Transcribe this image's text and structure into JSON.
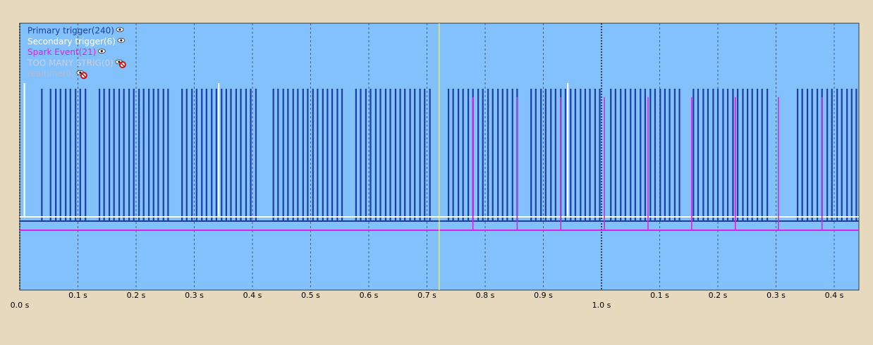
{
  "chart_data": {
    "type": "pulse",
    "xlim": [
      0,
      1.4424
    ],
    "xticks": [
      {
        "value": 0.1,
        "label": "0.1 s"
      },
      {
        "value": 0.2,
        "label": "0.2 s"
      },
      {
        "value": 0.3,
        "label": "0.3 s"
      },
      {
        "value": 0.4,
        "label": "0.4 s"
      },
      {
        "value": 0.5,
        "label": "0.5 s"
      },
      {
        "value": 0.6,
        "label": "0.6 s"
      },
      {
        "value": 0.7,
        "label": "0.7 s"
      },
      {
        "value": 0.8,
        "label": "0.8 s"
      },
      {
        "value": 0.9,
        "label": "0.9 s"
      },
      {
        "value": 1.1,
        "label": "0.1 s"
      },
      {
        "value": 1.2,
        "label": "0.2 s"
      },
      {
        "value": 1.3,
        "label": "0.3 s"
      },
      {
        "value": 1.4,
        "label": "0.4 s"
      }
    ],
    "major_xticks": [
      {
        "value": 0,
        "label": "0.0 s"
      },
      {
        "value": 1.0,
        "label": "1.0 s"
      }
    ],
    "cursor": 0.721,
    "cursor_color": "#f0f080",
    "grid": true,
    "series": [
      {
        "name": "Primary trigger(240)",
        "color": "#1c3ea6",
        "hidden": false,
        "values": [
          0.038,
          0.053,
          0.062,
          0.07,
          0.079,
          0.087,
          0.096,
          0.104,
          0.113,
          0.137,
          0.145,
          0.154,
          0.162,
          0.171,
          0.179,
          0.188,
          0.196,
          0.205,
          0.213,
          0.222,
          0.23,
          0.238,
          0.247,
          0.255,
          0.279,
          0.287,
          0.296,
          0.304,
          0.313,
          0.321,
          0.33,
          0.338,
          0.347,
          0.355,
          0.363,
          0.372,
          0.38,
          0.389,
          0.397,
          0.406,
          0.436,
          0.444,
          0.453,
          0.461,
          0.47,
          0.478,
          0.487,
          0.495,
          0.504,
          0.512,
          0.521,
          0.529,
          0.537,
          0.546,
          0.554,
          0.578,
          0.586,
          0.595,
          0.603,
          0.612,
          0.62,
          0.629,
          0.637,
          0.646,
          0.654,
          0.662,
          0.671,
          0.679,
          0.688,
          0.696,
          0.705,
          0.737,
          0.745,
          0.754,
          0.762,
          0.771,
          0.779,
          0.788,
          0.796,
          0.805,
          0.813,
          0.822,
          0.83,
          0.838,
          0.847,
          0.855,
          0.879,
          0.887,
          0.896,
          0.904,
          0.913,
          0.921,
          0.93,
          0.938,
          0.947,
          0.955,
          0.964,
          0.972,
          0.98,
          0.989,
          0.997,
          1.016,
          1.024,
          1.033,
          1.041,
          1.05,
          1.058,
          1.067,
          1.075,
          1.084,
          1.092,
          1.101,
          1.109,
          1.117,
          1.126,
          1.134,
          1.158,
          1.166,
          1.175,
          1.183,
          1.192,
          1.2,
          1.209,
          1.217,
          1.226,
          1.234,
          1.243,
          1.251,
          1.259,
          1.268,
          1.276,
          1.285,
          1.337,
          1.345,
          1.354,
          1.362,
          1.371,
          1.379,
          1.388,
          1.396,
          1.405,
          1.413,
          1.422,
          1.43,
          1.438
        ]
      },
      {
        "name": "Secondary trigger(6)",
        "color": "#ffffff",
        "hidden": false,
        "values": [
          0.008,
          0.342,
          0.942
        ]
      },
      {
        "name": "Spark Event(21)",
        "color": "#e020e8",
        "hidden": false,
        "values": [
          0.779,
          0.855,
          0.93,
          1.005,
          1.08,
          1.155,
          1.23,
          1.304,
          1.379
        ]
      },
      {
        "name": "TOO MANY STRIG(0)",
        "color": "#c8d0dc",
        "hidden": true,
        "values": []
      },
      {
        "name": "realtime(0)",
        "color": "#b4bcd4",
        "hidden": true,
        "values": []
      }
    ]
  }
}
